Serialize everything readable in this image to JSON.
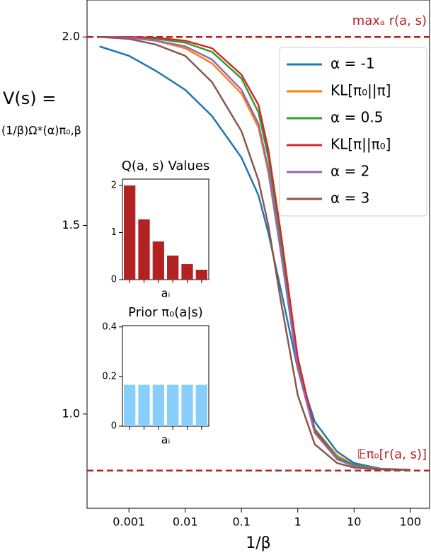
{
  "chart_data": [
    {
      "type": "line",
      "xlabel": "1/β",
      "ylabel": [
        "V(s) =",
        "(1/β)Ω*(α)π₀,β"
      ],
      "xscale": "log",
      "x": [
        0.0003,
        0.001,
        0.003,
        0.01,
        0.03,
        0.1,
        0.2,
        0.3,
        0.5,
        1,
        2,
        5,
        10,
        30,
        100
      ],
      "xlim": [
        0.00018,
        220
      ],
      "xticks": [
        0.001,
        0.01,
        0.1,
        1,
        10,
        100
      ],
      "ylim": [
        0.75,
        2.098
      ],
      "yticks": [
        {
          "value": 1.0,
          "label": "1.0"
        },
        {
          "value": 1.5,
          "label": "1.5"
        },
        {
          "value": 2.0,
          "label": "2.0"
        }
      ],
      "legend": "upper right",
      "series": [
        {
          "name": "α = -1",
          "color": "#1f77b4",
          "values": [
            1.975,
            1.95,
            1.91,
            1.86,
            1.79,
            1.68,
            1.58,
            1.48,
            1.33,
            1.12,
            0.98,
            0.9,
            0.87,
            0.855,
            0.852
          ]
        },
        {
          "name": "KL[π₀||π]",
          "color": "#ff7f0e",
          "values": [
            2.0,
            1.998,
            1.99,
            1.97,
            1.93,
            1.85,
            1.76,
            1.64,
            1.43,
            1.13,
            0.96,
            0.89,
            0.865,
            0.855,
            0.852
          ]
        },
        {
          "name": "α = 0.5",
          "color": "#2ca02c",
          "values": [
            2.0,
            1.999,
            1.995,
            1.985,
            1.96,
            1.89,
            1.8,
            1.68,
            1.46,
            1.14,
            0.96,
            0.885,
            0.865,
            0.855,
            0.852
          ]
        },
        {
          "name": "KL[π||π₀]",
          "color": "#d62728",
          "values": [
            2.0,
            2.0,
            1.998,
            1.99,
            1.97,
            1.9,
            1.82,
            1.7,
            1.48,
            1.15,
            0.955,
            0.88,
            0.862,
            0.854,
            0.852
          ]
        },
        {
          "name": "α = 2",
          "color": "#9467bd",
          "values": [
            2.0,
            1.998,
            1.99,
            1.975,
            1.94,
            1.86,
            1.77,
            1.65,
            1.43,
            1.12,
            0.95,
            0.88,
            0.862,
            0.854,
            0.852
          ]
        },
        {
          "name": "α = 3",
          "color": "#8c564b",
          "values": [
            2.0,
            1.995,
            1.98,
            1.95,
            1.88,
            1.75,
            1.62,
            1.5,
            1.3,
            1.05,
            0.92,
            0.87,
            0.858,
            0.853,
            0.852
          ]
        }
      ],
      "reference_lines": [
        {
          "value": 2.0,
          "label": "maxₐ r(a, s)",
          "color": "#b22222"
        },
        {
          "value": 0.85,
          "label": "𝔼π₀[r(a, s)]",
          "color": "#b22222"
        }
      ]
    },
    {
      "type": "bar",
      "title": "Q(a, s) Values",
      "xlabel": "aᵢ",
      "categories": [
        null,
        null,
        null,
        null,
        null,
        null
      ],
      "values": [
        2.0,
        1.28,
        0.81,
        0.51,
        0.33,
        0.21
      ],
      "color": "#b22222",
      "ylim": [
        0,
        2.135
      ],
      "yticks": [
        0,
        1,
        2
      ]
    },
    {
      "type": "bar",
      "title": "Prior π₀(a|s)",
      "xlabel": "aᵢ",
      "categories": [
        null,
        null,
        null,
        null,
        null,
        null
      ],
      "values": [
        0.1667,
        0.1667,
        0.1667,
        0.1667,
        0.1667,
        0.1667
      ],
      "color": "#87cefa",
      "ylim": [
        0,
        0.405
      ],
      "yticks": [
        0,
        0.2,
        0.4
      ]
    }
  ]
}
